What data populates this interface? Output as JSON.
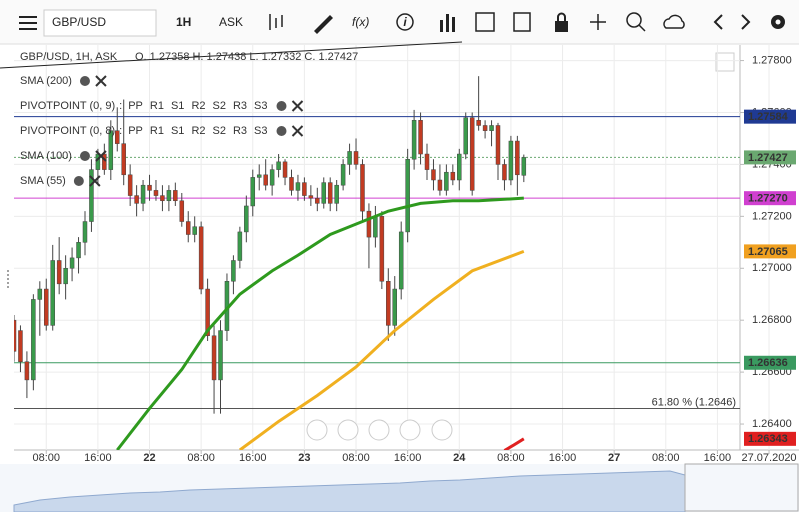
{
  "toolbar": {
    "symbol": "GBP/USD",
    "interval": "1H",
    "side": "ASK",
    "fx": "f(x)",
    "info": "i"
  },
  "chart_data": {
    "type": "candlestick",
    "header": "GBP/USD, 1H, ASK",
    "ohlc_text": "O. 1.27358 H. 1.27438 L. 1.27332 C. 1.27427",
    "up_color": "#3a9a4b",
    "down_color": "#c23b22",
    "xlim": [
      3,
      115.5
    ],
    "ylim": [
      1.263,
      1.2786
    ],
    "xticks": [
      {
        "value": 8,
        "label": "08:00"
      },
      {
        "value": 16,
        "label": "16:00"
      },
      {
        "value": 24,
        "label": "22"
      },
      {
        "value": 32,
        "label": "08:00"
      },
      {
        "value": 40,
        "label": "16:00"
      },
      {
        "value": 48,
        "label": "23"
      },
      {
        "value": 56,
        "label": "08:00"
      },
      {
        "value": 64,
        "label": "16:00"
      },
      {
        "value": 72,
        "label": "24"
      },
      {
        "value": 80,
        "label": "08:00"
      },
      {
        "value": 88,
        "label": "16:00"
      },
      {
        "value": 96,
        "label": "27"
      },
      {
        "value": 104,
        "label": "08:00"
      },
      {
        "value": 112,
        "label": "16:00"
      },
      {
        "value": 120,
        "label": "27.07.2020"
      }
    ],
    "yticks": [
      {
        "value": 1.264,
        "label": "1.26400"
      },
      {
        "value": 1.266,
        "label": "1.26600"
      },
      {
        "value": 1.268,
        "label": "1.26800"
      },
      {
        "value": 1.27,
        "label": "1.27000"
      },
      {
        "value": 1.272,
        "label": "1.27200"
      },
      {
        "value": 1.274,
        "label": "1.27400"
      },
      {
        "value": 1.276,
        "label": "1.27600"
      },
      {
        "value": 1.278,
        "label": "1.27800"
      }
    ],
    "grid": true,
    "candles": [
      {
        "x": 3,
        "open": 1.268,
        "high": 1.2682,
        "low": 1.2664,
        "close": 1.2668
      },
      {
        "x": 4,
        "open": 1.2676,
        "high": 1.2678,
        "low": 1.266,
        "close": 1.2664
      },
      {
        "x": 5,
        "open": 1.2664,
        "high": 1.2668,
        "low": 1.265,
        "close": 1.2657
      },
      {
        "x": 6,
        "open": 1.2657,
        "high": 1.269,
        "low": 1.2653,
        "close": 1.2688
      },
      {
        "x": 7,
        "open": 1.2688,
        "high": 1.2695,
        "low": 1.2674,
        "close": 1.2692
      },
      {
        "x": 8,
        "open": 1.2692,
        "high": 1.2696,
        "low": 1.2676,
        "close": 1.2678
      },
      {
        "x": 9,
        "open": 1.2678,
        "high": 1.2709,
        "low": 1.2676,
        "close": 1.2703
      },
      {
        "x": 10,
        "open": 1.2703,
        "high": 1.2712,
        "low": 1.269,
        "close": 1.2694
      },
      {
        "x": 11,
        "open": 1.2694,
        "high": 1.2705,
        "low": 1.2688,
        "close": 1.27
      },
      {
        "x": 12,
        "open": 1.27,
        "high": 1.2708,
        "low": 1.2695,
        "close": 1.2704
      },
      {
        "x": 13,
        "open": 1.2704,
        "high": 1.2712,
        "low": 1.2698,
        "close": 1.271
      },
      {
        "x": 14,
        "open": 1.271,
        "high": 1.2722,
        "low": 1.2705,
        "close": 1.2718
      },
      {
        "x": 15,
        "open": 1.2718,
        "high": 1.2742,
        "low": 1.2714,
        "close": 1.2738
      },
      {
        "x": 16,
        "open": 1.2738,
        "high": 1.2746,
        "low": 1.2732,
        "close": 1.2744
      },
      {
        "x": 17,
        "open": 1.2744,
        "high": 1.2748,
        "low": 1.2736,
        "close": 1.2738
      },
      {
        "x": 18,
        "open": 1.2738,
        "high": 1.2757,
        "low": 1.2734,
        "close": 1.2753
      },
      {
        "x": 19,
        "open": 1.2753,
        "high": 1.2762,
        "low": 1.2745,
        "close": 1.2748
      },
      {
        "x": 20,
        "open": 1.2748,
        "high": 1.2765,
        "low": 1.2732,
        "close": 1.2736
      },
      {
        "x": 21,
        "open": 1.2736,
        "high": 1.274,
        "low": 1.2724,
        "close": 1.2728
      },
      {
        "x": 22,
        "open": 1.2728,
        "high": 1.2732,
        "low": 1.272,
        "close": 1.2725
      },
      {
        "x": 23,
        "open": 1.2725,
        "high": 1.2734,
        "low": 1.2722,
        "close": 1.2732
      },
      {
        "x": 24,
        "open": 1.2732,
        "high": 1.2736,
        "low": 1.2726,
        "close": 1.273
      },
      {
        "x": 25,
        "open": 1.273,
        "high": 1.2734,
        "low": 1.2726,
        "close": 1.2728
      },
      {
        "x": 26,
        "open": 1.2728,
        "high": 1.2732,
        "low": 1.2722,
        "close": 1.2726
      },
      {
        "x": 27,
        "open": 1.2726,
        "high": 1.2732,
        "low": 1.2722,
        "close": 1.273
      },
      {
        "x": 28,
        "open": 1.273,
        "high": 1.2733,
        "low": 1.2724,
        "close": 1.2726
      },
      {
        "x": 29,
        "open": 1.2726,
        "high": 1.2729,
        "low": 1.2716,
        "close": 1.2718
      },
      {
        "x": 30,
        "open": 1.2718,
        "high": 1.2722,
        "low": 1.271,
        "close": 1.2713
      },
      {
        "x": 31,
        "open": 1.2713,
        "high": 1.272,
        "low": 1.271,
        "close": 1.2716
      },
      {
        "x": 32,
        "open": 1.2716,
        "high": 1.2718,
        "low": 1.269,
        "close": 1.2692
      },
      {
        "x": 33,
        "open": 1.2692,
        "high": 1.2696,
        "low": 1.2672,
        "close": 1.2674
      },
      {
        "x": 34,
        "open": 1.2674,
        "high": 1.2678,
        "low": 1.2644,
        "close": 1.2657
      },
      {
        "x": 35,
        "open": 1.2657,
        "high": 1.268,
        "low": 1.2644,
        "close": 1.2676
      },
      {
        "x": 36,
        "open": 1.2676,
        "high": 1.2698,
        "low": 1.2672,
        "close": 1.2695
      },
      {
        "x": 37,
        "open": 1.2695,
        "high": 1.2705,
        "low": 1.269,
        "close": 1.2703
      },
      {
        "x": 38,
        "open": 1.2703,
        "high": 1.2716,
        "low": 1.27,
        "close": 1.2714
      },
      {
        "x": 39,
        "open": 1.2714,
        "high": 1.2728,
        "low": 1.271,
        "close": 1.2724
      },
      {
        "x": 40,
        "open": 1.2724,
        "high": 1.2738,
        "low": 1.272,
        "close": 1.2735
      },
      {
        "x": 41,
        "open": 1.2735,
        "high": 1.274,
        "low": 1.273,
        "close": 1.2736
      },
      {
        "x": 42,
        "open": 1.2736,
        "high": 1.2742,
        "low": 1.273,
        "close": 1.2732
      },
      {
        "x": 43,
        "open": 1.2732,
        "high": 1.274,
        "low": 1.2728,
        "close": 1.2738
      },
      {
        "x": 44,
        "open": 1.2738,
        "high": 1.2744,
        "low": 1.2735,
        "close": 1.2741
      },
      {
        "x": 45,
        "open": 1.2741,
        "high": 1.2742,
        "low": 1.2732,
        "close": 1.2735
      },
      {
        "x": 46,
        "open": 1.2735,
        "high": 1.2738,
        "low": 1.2728,
        "close": 1.273
      },
      {
        "x": 47,
        "open": 1.273,
        "high": 1.2736,
        "low": 1.2726,
        "close": 1.2733
      },
      {
        "x": 48,
        "open": 1.2733,
        "high": 1.2735,
        "low": 1.2726,
        "close": 1.2728
      },
      {
        "x": 49,
        "open": 1.2728,
        "high": 1.2732,
        "low": 1.2724,
        "close": 1.2727
      },
      {
        "x": 50,
        "open": 1.2727,
        "high": 1.2731,
        "low": 1.2722,
        "close": 1.2725
      },
      {
        "x": 51,
        "open": 1.2725,
        "high": 1.2735,
        "low": 1.2723,
        "close": 1.2733
      },
      {
        "x": 52,
        "open": 1.2733,
        "high": 1.2735,
        "low": 1.2722,
        "close": 1.2725
      },
      {
        "x": 53,
        "open": 1.2725,
        "high": 1.2734,
        "low": 1.2722,
        "close": 1.2732
      },
      {
        "x": 54,
        "open": 1.2732,
        "high": 1.2742,
        "low": 1.273,
        "close": 1.274
      },
      {
        "x": 55,
        "open": 1.274,
        "high": 1.2748,
        "low": 1.2736,
        "close": 1.2745
      },
      {
        "x": 56,
        "open": 1.2745,
        "high": 1.275,
        "low": 1.2738,
        "close": 1.274
      },
      {
        "x": 57,
        "open": 1.274,
        "high": 1.2742,
        "low": 1.2718,
        "close": 1.2722
      },
      {
        "x": 58,
        "open": 1.2722,
        "high": 1.2725,
        "low": 1.27,
        "close": 1.2712
      },
      {
        "x": 59,
        "open": 1.2712,
        "high": 1.2724,
        "low": 1.2708,
        "close": 1.272
      },
      {
        "x": 60,
        "open": 1.272,
        "high": 1.2722,
        "low": 1.2692,
        "close": 1.2695
      },
      {
        "x": 61,
        "open": 1.2695,
        "high": 1.27,
        "low": 1.2672,
        "close": 1.2678
      },
      {
        "x": 62,
        "open": 1.2678,
        "high": 1.2697,
        "low": 1.2674,
        "close": 1.2692
      },
      {
        "x": 63,
        "open": 1.2692,
        "high": 1.2718,
        "low": 1.2688,
        "close": 1.2714
      },
      {
        "x": 64,
        "open": 1.2714,
        "high": 1.2746,
        "low": 1.271,
        "close": 1.2742
      },
      {
        "x": 65,
        "open": 1.2742,
        "high": 1.2761,
        "low": 1.2738,
        "close": 1.2757
      },
      {
        "x": 66,
        "open": 1.2757,
        "high": 1.276,
        "low": 1.274,
        "close": 1.2744
      },
      {
        "x": 67,
        "open": 1.2744,
        "high": 1.2748,
        "low": 1.2734,
        "close": 1.2738
      },
      {
        "x": 68,
        "open": 1.2738,
        "high": 1.2742,
        "low": 1.273,
        "close": 1.2734
      },
      {
        "x": 69,
        "open": 1.2734,
        "high": 1.274,
        "low": 1.2728,
        "close": 1.273
      },
      {
        "x": 70,
        "open": 1.273,
        "high": 1.274,
        "low": 1.2728,
        "close": 1.2737
      },
      {
        "x": 71,
        "open": 1.2737,
        "high": 1.274,
        "low": 1.2732,
        "close": 1.2734
      },
      {
        "x": 72,
        "open": 1.2734,
        "high": 1.2746,
        "low": 1.273,
        "close": 1.2744
      },
      {
        "x": 73,
        "open": 1.2744,
        "high": 1.276,
        "low": 1.2742,
        "close": 1.2758
      },
      {
        "x": 74,
        "open": 1.2758,
        "high": 1.276,
        "low": 1.2728,
        "close": 1.273
      },
      {
        "x": 75,
        "open": 1.2757,
        "high": 1.2774,
        "low": 1.2753,
        "close": 1.2755
      },
      {
        "x": 76,
        "open": 1.2755,
        "high": 1.2757,
        "low": 1.275,
        "close": 1.2753
      },
      {
        "x": 77,
        "open": 1.2753,
        "high": 1.2757,
        "low": 1.2747,
        "close": 1.2755
      },
      {
        "x": 78,
        "open": 1.2755,
        "high": 1.2756,
        "low": 1.2734,
        "close": 1.274
      },
      {
        "x": 79,
        "open": 1.274,
        "high": 1.2742,
        "low": 1.273,
        "close": 1.2734
      },
      {
        "x": 80,
        "open": 1.2734,
        "high": 1.2751,
        "low": 1.2732,
        "close": 1.2749
      },
      {
        "x": 81,
        "open": 1.2749,
        "high": 1.2751,
        "low": 1.2728,
        "close": 1.2736
      },
      {
        "x": 82,
        "open": 1.27358,
        "high": 1.27438,
        "low": 1.27332,
        "close": 1.27427
      }
    ],
    "series": [
      {
        "name": "SMA (200)",
        "color": "#e02020",
        "x": [
          79,
          80.5,
          82
        ],
        "values": [
          1.26298,
          1.2632,
          1.26343
        ]
      },
      {
        "name": "PIVOTPOINT (0, 9)"
      },
      {
        "name": "PIVOTPOINT (0, 8)"
      },
      {
        "name": "SMA (100)",
        "color": "#f0b020",
        "x": [
          38,
          44,
          50,
          56,
          62,
          68,
          74,
          82
        ],
        "values": [
          1.263,
          1.2641,
          1.2651,
          1.2662,
          1.2676,
          1.2688,
          1.2699,
          1.27065
        ]
      },
      {
        "name": "SMA (55)",
        "color": "#2e9a1e",
        "x": [
          19,
          24,
          29,
          33,
          38,
          43,
          47,
          52,
          57,
          61,
          66,
          71,
          75,
          82
        ],
        "values": [
          1.263,
          1.2646,
          1.2661,
          1.2676,
          1.269,
          1.2699,
          1.2705,
          1.2713,
          1.2718,
          1.2722,
          1.2725,
          1.2726,
          1.2726,
          1.2727
        ]
      }
    ],
    "pivot_prefix": ":",
    "pivot_items": [
      [
        {
          "text": "PP",
          "color": "#c040c0"
        },
        {
          "text": "R1",
          "color": "#c040c0"
        },
        {
          "text": "S1",
          "color": "#c040c0"
        },
        {
          "text": "R2",
          "color": "#c040c0"
        },
        {
          "text": "S2",
          "color": "#c040c0"
        },
        {
          "text": "R3",
          "color": "#c040c0"
        },
        {
          "text": "S3",
          "color": "#208080"
        }
      ],
      [
        {
          "text": "PP",
          "color": "#c040c0"
        },
        {
          "text": "R1",
          "color": "#2e9a1e"
        },
        {
          "text": "S1",
          "color": "#2040c0"
        },
        {
          "text": "R2",
          "color": "#333333"
        },
        {
          "text": "S2",
          "color": "#333333"
        },
        {
          "text": "R3",
          "color": "#a0522d"
        },
        {
          "text": "S3",
          "color": "#c040c0"
        }
      ]
    ],
    "price_lines": [
      {
        "value": 1.27584,
        "label": "1.27584",
        "color": "#1f3a93",
        "line": true
      },
      {
        "value": 1.27427,
        "label": "1.27427",
        "color": "#6aa870",
        "line": true,
        "dashed": true
      },
      {
        "value": 1.2727,
        "label": "1.27270",
        "color": "#d040d0",
        "line": true
      },
      {
        "value": 1.27065,
        "label": "1.27065",
        "color": "#f0a020",
        "line": false
      },
      {
        "value": 1.26636,
        "label": "1.26636",
        "color": "#3a9a60",
        "line": true
      },
      {
        "value": 1.26343,
        "label": "1.26343",
        "color": "#e02020",
        "line": false
      }
    ],
    "fib_line": {
      "value": 1.2646,
      "label": "61.80 % (1.2646)"
    }
  }
}
